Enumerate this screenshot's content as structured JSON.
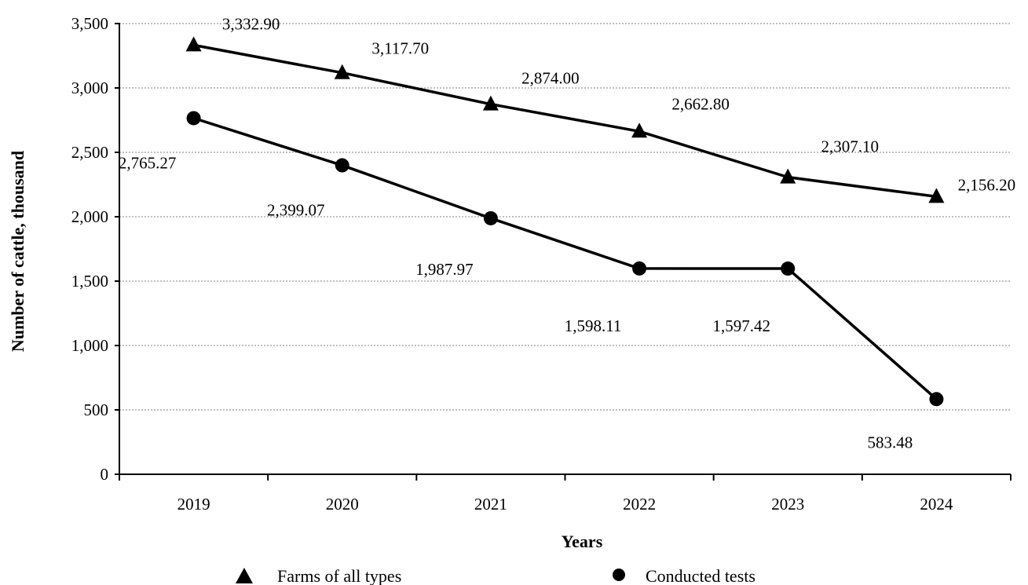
{
  "chart_data": {
    "type": "line",
    "xlabel": "Years",
    "ylabel": "Number of cattle, thousand",
    "categories": [
      "2019",
      "2020",
      "2021",
      "2022",
      "2023",
      "2024"
    ],
    "ylim": [
      0,
      3500
    ],
    "yticks": [
      0,
      500,
      1000,
      1500,
      2000,
      2500,
      3000,
      3500
    ],
    "ytick_labels": [
      "0",
      "500",
      "1,000",
      "1,500",
      "2,000",
      "2,500",
      "3,000",
      "3,500"
    ],
    "grid": "horizontal dotted",
    "legend_position": "bottom",
    "series": [
      {
        "name": "Farms of all types",
        "marker": "triangle",
        "values": [
          3332.9,
          3117.7,
          2874.0,
          2662.8,
          2307.1,
          2156.2
        ],
        "labels": [
          "3,332.90",
          "3,117.70",
          "2,874.00",
          "2,662.80",
          "2,307.10",
          "2,156.20"
        ]
      },
      {
        "name": "Conducted tests",
        "marker": "circle",
        "values": [
          2765.27,
          2399.07,
          1987.97,
          1598.11,
          1597.42,
          583.48
        ],
        "labels": [
          "2,765.27",
          "2,399.07",
          "1,987.97",
          "1,598.11",
          "1,597.42",
          "583.48"
        ]
      }
    ],
    "colors": {
      "line": "#000000",
      "grid": "#808080"
    }
  }
}
